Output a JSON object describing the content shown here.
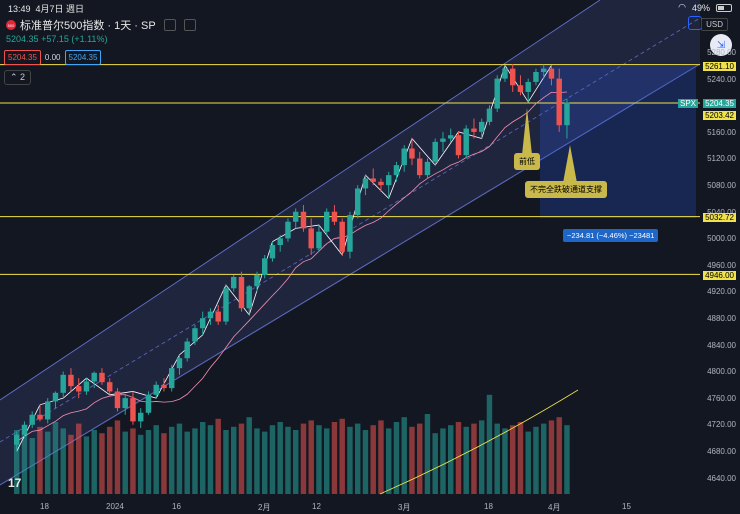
{
  "status": {
    "time": "13:49",
    "date": "4月7日 週日",
    "battery": "49%"
  },
  "header": {
    "title": "标准普尔500指数 · 1天 · SP",
    "logo_text": "500"
  },
  "price": {
    "last": "5204.35",
    "change": "+57.15 (+1.11%)"
  },
  "boxes": {
    "bid": "5204.35",
    "spread": "0.00",
    "ask": "5204.35"
  },
  "collapse_label": "2",
  "currency": "USD",
  "annotations": {
    "prev_low": "前低",
    "channel_support": "不完全跌破通道支撑",
    "measure": "−234.81 (−4.46%) −23481"
  },
  "price_tags": {
    "high": "5261.10",
    "spx_label": "SPX",
    "last": "5204.35",
    "line": "5203.42",
    "mid": "5032.72",
    "low": "4946.00"
  },
  "y_axis": [
    "5280.00",
    "5240.00",
    "5200.00",
    "5160.00",
    "5120.00",
    "5080.00",
    "5040.00",
    "5000.00",
    "4960.00",
    "4920.00",
    "4880.00",
    "4840.00",
    "4800.00",
    "4760.00",
    "4720.00",
    "4680.00",
    "4640.00"
  ],
  "x_axis": [
    "18",
    "2024",
    "16",
    "2月",
    "12",
    "3月",
    "18",
    "4月",
    "15"
  ],
  "colors": {
    "up": "#26a69a",
    "down": "#ef5350",
    "channel": "#5c6bc0",
    "hline": "#f0e24a"
  },
  "chart_data": {
    "type": "candlestick",
    "candles": [
      [
        4690,
        4710,
        4680,
        4705
      ],
      [
        4705,
        4725,
        4700,
        4720
      ],
      [
        4720,
        4740,
        4715,
        4735
      ],
      [
        4735,
        4750,
        4725,
        4728
      ],
      [
        4728,
        4760,
        4722,
        4755
      ],
      [
        4755,
        4770,
        4745,
        4768
      ],
      [
        4768,
        4800,
        4760,
        4795
      ],
      [
        4795,
        4805,
        4770,
        4778
      ],
      [
        4778,
        4790,
        4760,
        4770
      ],
      [
        4770,
        4790,
        4765,
        4785
      ],
      [
        4785,
        4800,
        4775,
        4798
      ],
      [
        4798,
        4805,
        4780,
        4784
      ],
      [
        4784,
        4790,
        4765,
        4770
      ],
      [
        4770,
        4775,
        4740,
        4745
      ],
      [
        4745,
        4765,
        4735,
        4760
      ],
      [
        4760,
        4770,
        4720,
        4725
      ],
      [
        4725,
        4745,
        4715,
        4738
      ],
      [
        4738,
        4770,
        4735,
        4765
      ],
      [
        4765,
        4785,
        4760,
        4780
      ],
      [
        4780,
        4790,
        4770,
        4775
      ],
      [
        4775,
        4810,
        4770,
        4805
      ],
      [
        4805,
        4825,
        4795,
        4820
      ],
      [
        4820,
        4850,
        4815,
        4845
      ],
      [
        4845,
        4870,
        4840,
        4865
      ],
      [
        4865,
        4890,
        4855,
        4880
      ],
      [
        4880,
        4895,
        4870,
        4890
      ],
      [
        4890,
        4900,
        4870,
        4875
      ],
      [
        4875,
        4930,
        4870,
        4925
      ],
      [
        4925,
        4945,
        4920,
        4942
      ],
      [
        4942,
        4950,
        4890,
        4895
      ],
      [
        4895,
        4930,
        4885,
        4928
      ],
      [
        4928,
        4950,
        4920,
        4945
      ],
      [
        4945,
        4975,
        4940,
        4970
      ],
      [
        4970,
        4995,
        4965,
        4990
      ],
      [
        4990,
        5005,
        4980,
        5000
      ],
      [
        5000,
        5030,
        4995,
        5025
      ],
      [
        5025,
        5045,
        5015,
        5040
      ],
      [
        5040,
        5050,
        5010,
        5015
      ],
      [
        5015,
        5030,
        4975,
        4985
      ],
      [
        4985,
        5020,
        4980,
        5010
      ],
      [
        5010,
        5045,
        5005,
        5040
      ],
      [
        5040,
        5050,
        5020,
        5025
      ],
      [
        5025,
        5030,
        4975,
        4980
      ],
      [
        4980,
        5040,
        4970,
        5035
      ],
      [
        5035,
        5080,
        5030,
        5075
      ],
      [
        5075,
        5095,
        5065,
        5090
      ],
      [
        5090,
        5105,
        5080,
        5085
      ],
      [
        5085,
        5090,
        5070,
        5080
      ],
      [
        5080,
        5100,
        5060,
        5095
      ],
      [
        5095,
        5115,
        5085,
        5110
      ],
      [
        5110,
        5140,
        5100,
        5135
      ],
      [
        5135,
        5150,
        5110,
        5120
      ],
      [
        5120,
        5130,
        5090,
        5095
      ],
      [
        5095,
        5120,
        5090,
        5115
      ],
      [
        5115,
        5150,
        5110,
        5145
      ],
      [
        5145,
        5160,
        5130,
        5150
      ],
      [
        5150,
        5165,
        5145,
        5155
      ],
      [
        5155,
        5160,
        5120,
        5125
      ],
      [
        5125,
        5170,
        5120,
        5165
      ],
      [
        5165,
        5180,
        5150,
        5160
      ],
      [
        5160,
        5180,
        5150,
        5175
      ],
      [
        5175,
        5200,
        5170,
        5195
      ],
      [
        5195,
        5245,
        5190,
        5240
      ],
      [
        5240,
        5260,
        5235,
        5255
      ],
      [
        5255,
        5262,
        5220,
        5230
      ],
      [
        5230,
        5245,
        5215,
        5220
      ],
      [
        5220,
        5240,
        5205,
        5235
      ],
      [
        5235,
        5255,
        5230,
        5250
      ],
      [
        5250,
        5261,
        5240,
        5255
      ],
      [
        5255,
        5260,
        5230,
        5240
      ],
      [
        5240,
        5255,
        5160,
        5170
      ],
      [
        5170,
        5210,
        5150,
        5204
      ]
    ],
    "volume": [
      40,
      38,
      35,
      42,
      39,
      45,
      41,
      37,
      44,
      36,
      40,
      38,
      42,
      46,
      39,
      41,
      37,
      40,
      43,
      38,
      42,
      44,
      39,
      41,
      45,
      43,
      47,
      40,
      42,
      44,
      48,
      41,
      39,
      43,
      45,
      42,
      40,
      44,
      46,
      43,
      41,
      45,
      47,
      42,
      44,
      40,
      43,
      46,
      41,
      45,
      48,
      42,
      44,
      50,
      38,
      41,
      43,
      45,
      42,
      44,
      46,
      62,
      44,
      41,
      43,
      45,
      39,
      42,
      44,
      46,
      48,
      43
    ]
  }
}
